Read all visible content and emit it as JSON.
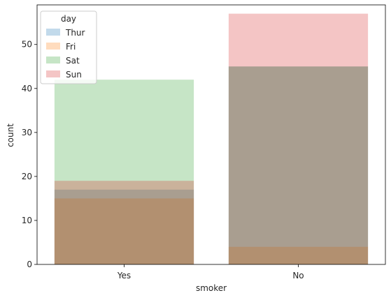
{
  "chart_data": {
    "type": "bar",
    "xlabel": "smoker",
    "ylabel": "count",
    "categories": [
      "Yes",
      "No"
    ],
    "ylim": [
      0,
      59
    ],
    "yticks": [
      0,
      10,
      20,
      30,
      40,
      50
    ],
    "grid": false,
    "legend": {
      "title": "day",
      "placement": "top-left"
    },
    "series": [
      {
        "name": "Thur",
        "values": [
          17,
          45
        ],
        "color": "#1f77b4"
      },
      {
        "name": "Fri",
        "values": [
          15,
          4
        ],
        "color": "#ff7f0e"
      },
      {
        "name": "Sat",
        "values": [
          42,
          45
        ],
        "color": "#2ca02c"
      },
      {
        "name": "Sun",
        "values": [
          19,
          57
        ],
        "color": "#d62728"
      }
    ],
    "bar_alpha": 0.27
  }
}
